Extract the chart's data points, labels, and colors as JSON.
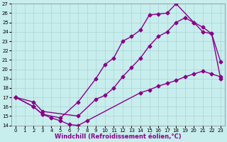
{
  "xlabel": "Windchill (Refroidissement éolien,°C)",
  "xlim": [
    -0.5,
    23.5
  ],
  "ylim": [
    14,
    27
  ],
  "yticks": [
    14,
    15,
    16,
    17,
    18,
    19,
    20,
    21,
    22,
    23,
    24,
    25,
    26,
    27
  ],
  "xticks": [
    0,
    1,
    2,
    3,
    4,
    5,
    6,
    7,
    8,
    9,
    10,
    11,
    12,
    13,
    14,
    15,
    16,
    17,
    18,
    19,
    20,
    21,
    22,
    23
  ],
  "bg_color": "#c8eded",
  "line_color": "#880088",
  "grid_color": "#aad4d4",
  "line1_x": [
    0,
    2,
    3,
    4,
    5,
    6,
    7,
    8,
    14,
    15,
    16,
    17,
    18,
    19,
    20,
    21,
    22,
    23
  ],
  "line1_y": [
    17.0,
    16.0,
    15.2,
    14.8,
    14.5,
    14.1,
    14.0,
    14.5,
    17.5,
    17.8,
    18.2,
    18.5,
    18.8,
    19.2,
    19.5,
    19.8,
    19.5,
    19.2
  ],
  "line2_x": [
    0,
    2,
    3,
    5,
    7,
    9,
    10,
    11,
    12,
    13,
    14,
    15,
    16,
    17,
    18,
    20,
    21,
    22,
    23
  ],
  "line2_y": [
    17.0,
    16.0,
    15.2,
    14.8,
    16.5,
    19.0,
    20.5,
    21.2,
    23.0,
    23.5,
    24.2,
    25.8,
    25.9,
    26.0,
    27.0,
    25.0,
    24.0,
    23.8,
    20.8
  ],
  "line3_x": [
    0,
    2,
    3,
    7,
    9,
    10,
    11,
    12,
    13,
    14,
    15,
    16,
    17,
    18,
    19,
    20,
    21,
    22,
    23
  ],
  "line3_y": [
    17.0,
    16.5,
    15.5,
    15.0,
    16.8,
    17.2,
    18.0,
    19.2,
    20.2,
    21.2,
    22.5,
    23.5,
    24.0,
    25.0,
    25.5,
    25.0,
    24.5,
    23.8,
    19.0
  ],
  "marker": "D",
  "markersize": 2.5,
  "linewidth": 1.0,
  "tick_fontsize": 5.0,
  "xlabel_fontsize": 6.0
}
